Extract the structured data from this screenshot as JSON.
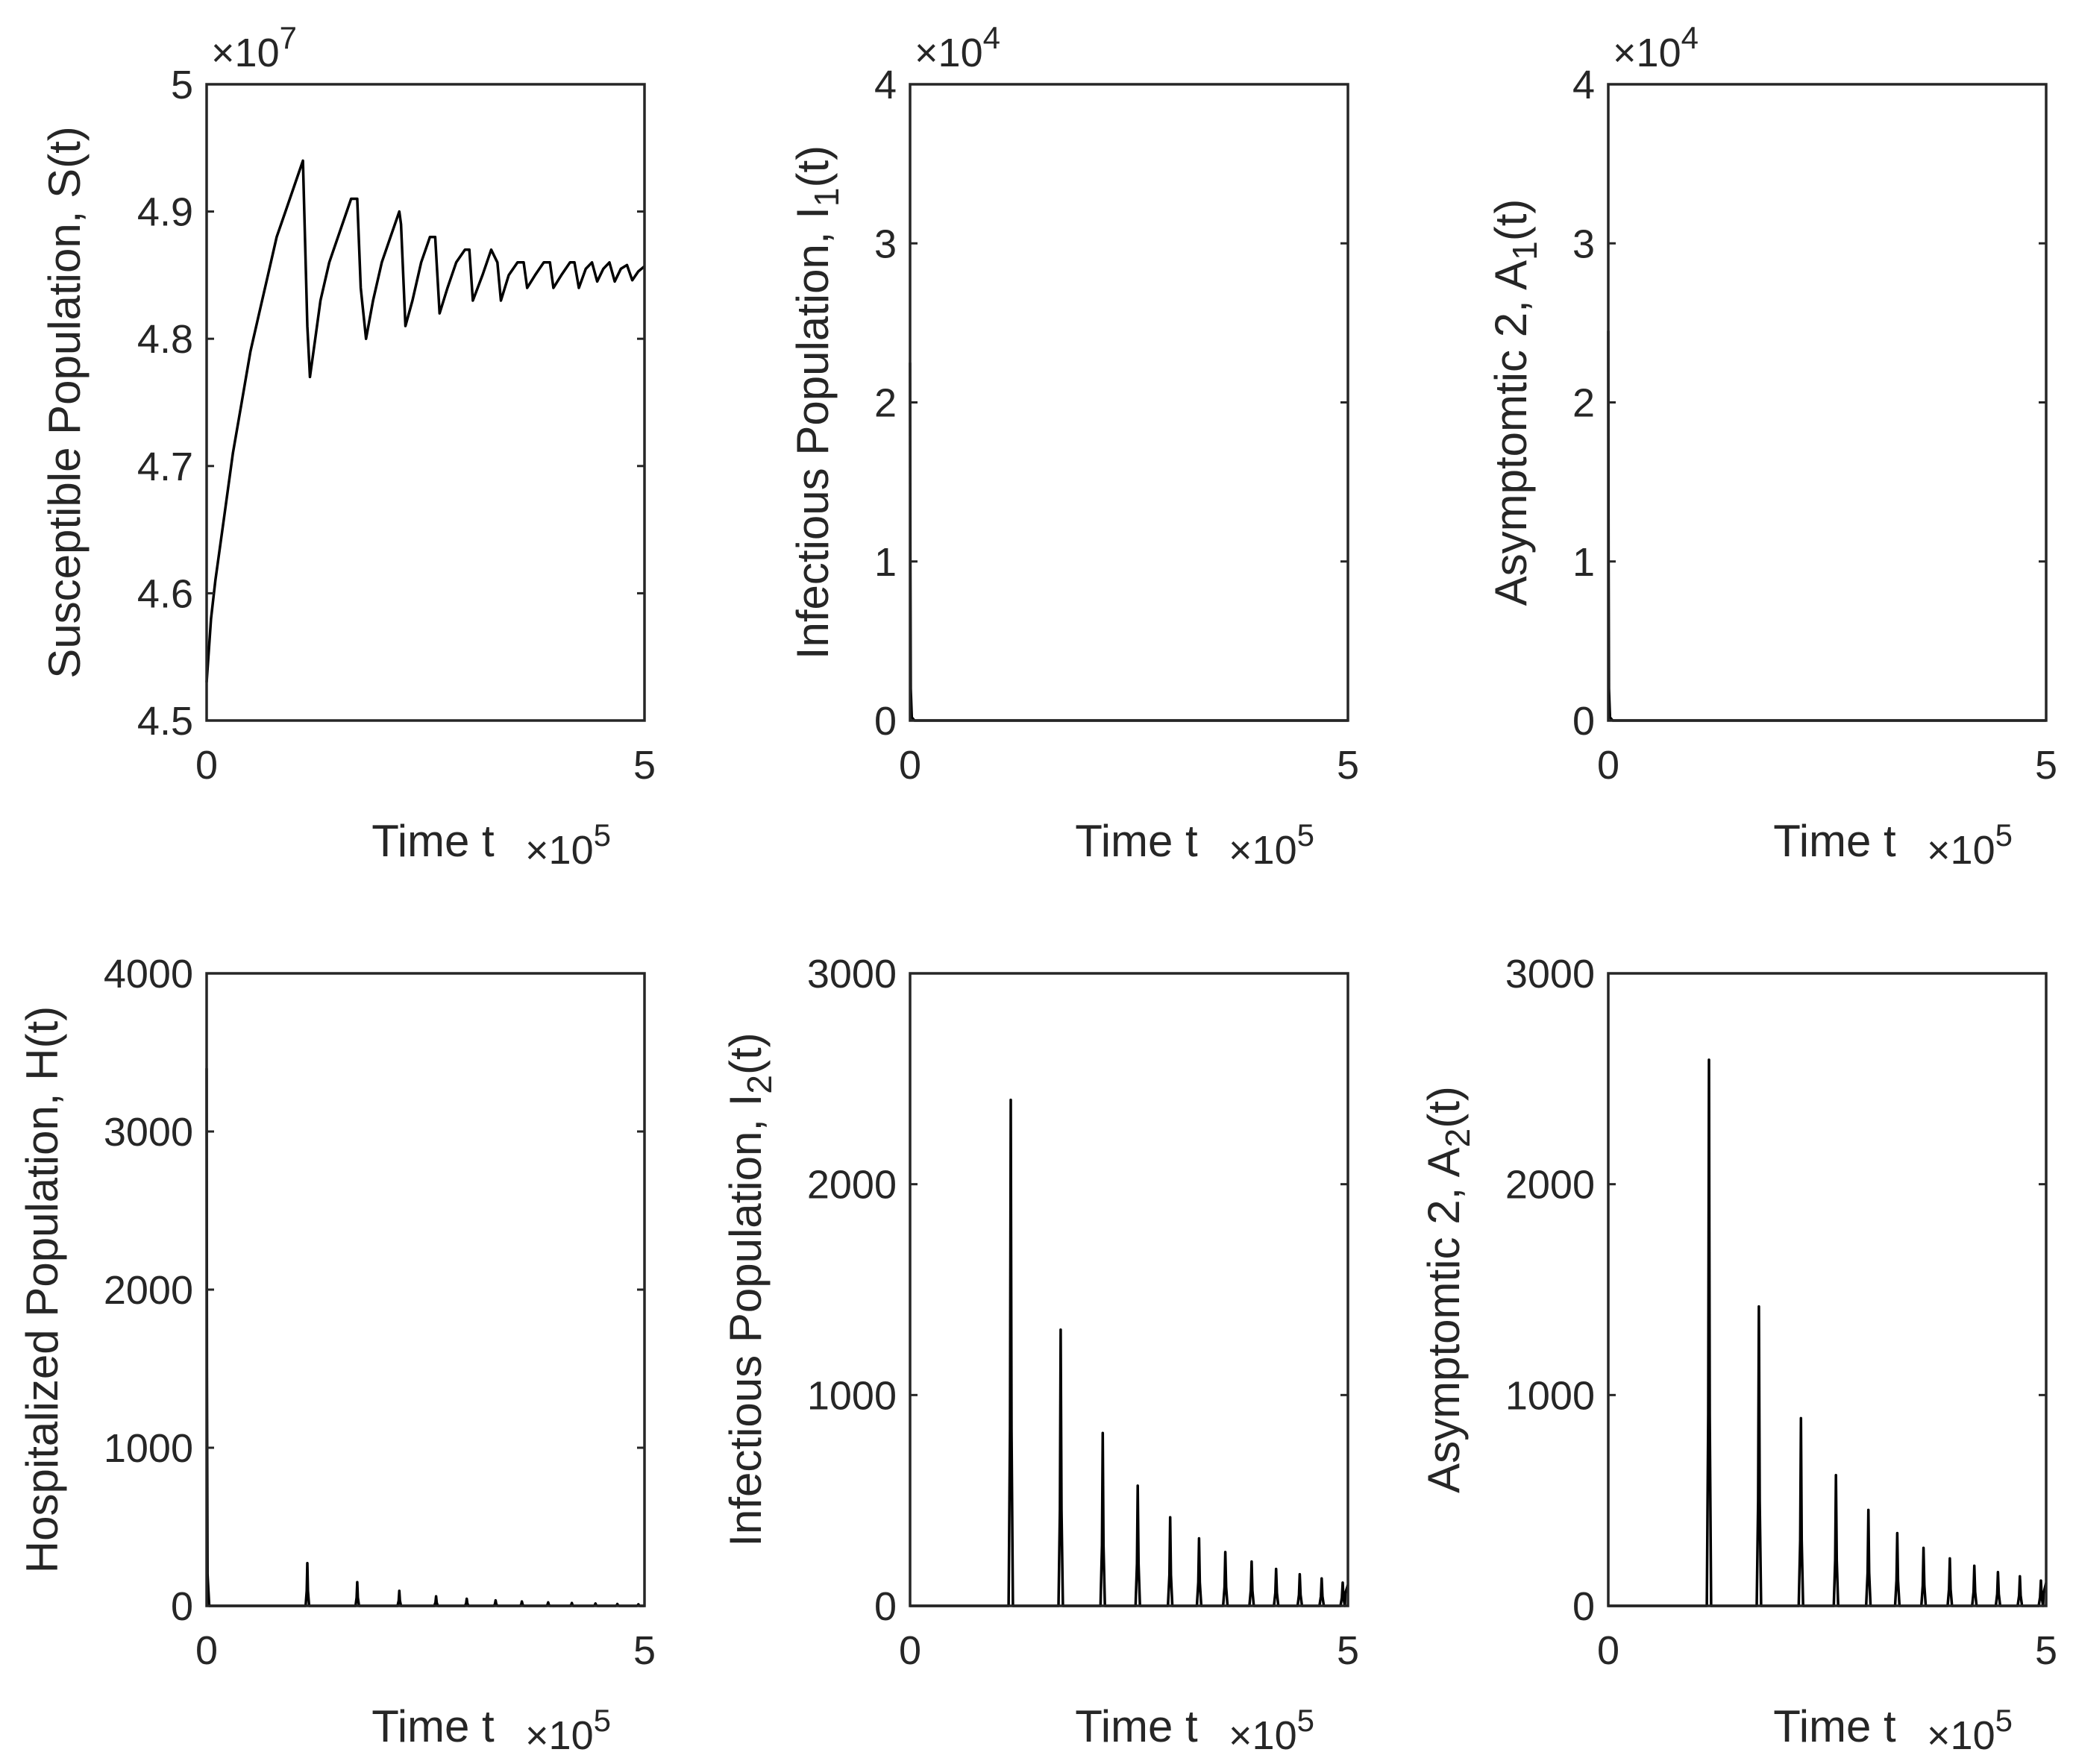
{
  "chart_data": [
    {
      "type": "line",
      "panel": "top-left",
      "title": "",
      "xlabel": "Time t",
      "x_multiplier": "×10",
      "x_multiplier_exp": "5",
      "ylabel": "Susceptible Population, S(t)",
      "ylabel_sub": "",
      "ylabel_end": "",
      "y_multiplier": "×10",
      "y_multiplier_exp": "7",
      "xlim": [
        0,
        5
      ],
      "ylim": [
        4.5,
        5
      ],
      "x_ticks": [
        "0",
        "5"
      ],
      "y_ticks": [
        "4.5",
        "4.6",
        "4.7",
        "4.8",
        "4.9",
        "5"
      ],
      "y_tick_values": [
        4.5,
        4.6,
        4.7,
        4.8,
        4.9,
        5
      ],
      "series": [
        {
          "name": "S",
          "x": [
            0,
            0.05,
            0.1,
            0.2,
            0.3,
            0.4,
            0.5,
            0.6,
            0.7,
            0.8,
            0.9,
            1.0,
            1.1,
            1.15,
            1.18,
            1.24,
            1.3,
            1.4,
            1.5,
            1.65,
            1.72,
            1.76,
            1.82,
            1.9,
            2.0,
            2.1,
            2.2,
            2.22,
            2.27,
            2.35,
            2.45,
            2.55,
            2.61,
            2.66,
            2.75,
            2.85,
            2.95,
            3.0,
            3.04,
            3.15,
            3.25,
            3.32,
            3.36,
            3.45,
            3.55,
            3.62,
            3.66,
            3.75,
            3.85,
            3.92,
            3.96,
            4.05,
            4.15,
            4.2,
            4.25,
            4.33,
            4.4,
            4.46,
            4.53,
            4.6,
            4.66,
            4.73,
            4.8,
            4.86,
            4.93,
            5.0
          ],
          "y": [
            4.53,
            4.58,
            4.61,
            4.66,
            4.71,
            4.75,
            4.79,
            4.82,
            4.85,
            4.88,
            4.9,
            4.92,
            4.94,
            4.81,
            4.77,
            4.8,
            4.83,
            4.86,
            4.88,
            4.91,
            4.91,
            4.84,
            4.8,
            4.83,
            4.86,
            4.88,
            4.9,
            4.89,
            4.81,
            4.83,
            4.86,
            4.88,
            4.88,
            4.82,
            4.84,
            4.86,
            4.87,
            4.87,
            4.83,
            4.85,
            4.87,
            4.86,
            4.83,
            4.85,
            4.86,
            4.86,
            4.84,
            4.85,
            4.86,
            4.86,
            4.84,
            4.85,
            4.86,
            4.86,
            4.84,
            4.855,
            4.86,
            4.845,
            4.855,
            4.86,
            4.845,
            4.855,
            4.858,
            4.846,
            4.853,
            4.857
          ]
        }
      ]
    },
    {
      "type": "line",
      "panel": "top-middle",
      "title": "",
      "xlabel": "Time t",
      "x_multiplier": "×10",
      "x_multiplier_exp": "5",
      "ylabel": "Infectious Population, I",
      "ylabel_sub": "1",
      "ylabel_end": "(t)",
      "y_multiplier": "×10",
      "y_multiplier_exp": "4",
      "xlim": [
        0,
        5
      ],
      "ylim": [
        0,
        4
      ],
      "x_ticks": [
        "0",
        "5"
      ],
      "y_ticks": [
        "0",
        "1",
        "2",
        "3",
        "4"
      ],
      "y_tick_values": [
        0,
        1,
        2,
        3,
        4
      ],
      "series": [
        {
          "name": "I1",
          "x": [
            0,
            0.003,
            0.008,
            0.02,
            0.05,
            0.5,
            1.0,
            2.0,
            3.0,
            4.0,
            5.0
          ],
          "y": [
            2.25,
            1.0,
            0.2,
            0.02,
            0,
            0,
            0,
            0,
            0,
            0,
            0
          ]
        }
      ]
    },
    {
      "type": "line",
      "panel": "top-right",
      "title": "",
      "xlabel": "Time t",
      "x_multiplier": "×10",
      "x_multiplier_exp": "5",
      "ylabel": "Asymptomtic 2, A",
      "ylabel_sub": "1",
      "ylabel_end": "(t)",
      "y_multiplier": "×10",
      "y_multiplier_exp": "4",
      "xlim": [
        0,
        5
      ],
      "ylim": [
        0,
        4
      ],
      "x_ticks": [
        "0",
        "5"
      ],
      "y_ticks": [
        "0",
        "1",
        "2",
        "3",
        "4"
      ],
      "y_tick_values": [
        0,
        1,
        2,
        3,
        4
      ],
      "series": [
        {
          "name": "A1",
          "x": [
            0,
            0.003,
            0.008,
            0.02,
            0.05,
            0.5,
            1.0,
            2.0,
            3.0,
            4.0,
            5.0
          ],
          "y": [
            2.45,
            1.0,
            0.2,
            0.02,
            0,
            0,
            0,
            0,
            0,
            0,
            0
          ]
        }
      ]
    },
    {
      "type": "line",
      "panel": "bottom-left",
      "title": "",
      "xlabel": "Time t",
      "x_multiplier": "×10",
      "x_multiplier_exp": "5",
      "ylabel": "Hospitalized Population, H(t)",
      "ylabel_sub": "",
      "ylabel_end": "",
      "y_multiplier": "",
      "y_multiplier_exp": "",
      "xlim": [
        0,
        5
      ],
      "ylim": [
        0,
        4000
      ],
      "x_ticks": [
        "0",
        "5"
      ],
      "y_ticks": [
        "0",
        "1000",
        "2000",
        "3000",
        "4000"
      ],
      "y_tick_values": [
        0,
        1000,
        2000,
        3000,
        4000
      ],
      "series": [
        {
          "name": "H",
          "x": [
            0,
            0.003,
            0.01,
            0.03
          ],
          "y": [
            3400,
            1500,
            200,
            0
          ],
          "peaks": [
            [
              1.15,
              270
            ],
            [
              1.72,
              150
            ],
            [
              2.2,
              95
            ],
            [
              2.62,
              60
            ],
            [
              2.97,
              45
            ],
            [
              3.3,
              35
            ],
            [
              3.6,
              28
            ],
            [
              3.9,
              22
            ],
            [
              4.17,
              18
            ],
            [
              4.44,
              15
            ],
            [
              4.69,
              12
            ],
            [
              4.93,
              10
            ]
          ],
          "peak_width": 0.02
        }
      ]
    },
    {
      "type": "line",
      "panel": "bottom-middle",
      "title": "",
      "xlabel": "Time t",
      "x_multiplier": "×10",
      "x_multiplier_exp": "5",
      "ylabel": "Infectious Population, I",
      "ylabel_sub": "2",
      "ylabel_end": "(t)",
      "y_multiplier": "",
      "y_multiplier_exp": "",
      "xlim": [
        0,
        5
      ],
      "ylim": [
        0,
        3000
      ],
      "x_ticks": [
        "0",
        "5"
      ],
      "y_ticks": [
        "0",
        "1000",
        "2000",
        "3000"
      ],
      "y_tick_values": [
        0,
        1000,
        2000,
        3000
      ],
      "series": [
        {
          "name": "I2",
          "x": [],
          "y": [],
          "peaks": [
            [
              1.15,
              2400
            ],
            [
              1.72,
              1310
            ],
            [
              2.2,
              820
            ],
            [
              2.6,
              570
            ],
            [
              2.97,
              420
            ],
            [
              3.3,
              320
            ],
            [
              3.6,
              255
            ],
            [
              3.9,
              210
            ],
            [
              4.18,
              175
            ],
            [
              4.45,
              150
            ],
            [
              4.7,
              130
            ],
            [
              4.94,
              110
            ]
          ],
          "peak_width": 0.025,
          "tail": [
            [
              4.97,
              60
            ],
            [
              5.0,
              100
            ]
          ]
        }
      ]
    },
    {
      "type": "line",
      "panel": "bottom-right",
      "title": "",
      "xlabel": "Time t",
      "x_multiplier": "×10",
      "x_multiplier_exp": "5",
      "ylabel": "Asymptomtic 2, A",
      "ylabel_sub": "2",
      "ylabel_end": "(t)",
      "y_multiplier": "",
      "y_multiplier_exp": "",
      "xlim": [
        0,
        5
      ],
      "ylim": [
        0,
        3000
      ],
      "x_ticks": [
        "0",
        "5"
      ],
      "y_ticks": [
        "0",
        "1000",
        "2000",
        "3000"
      ],
      "y_tick_values": [
        0,
        1000,
        2000,
        3000
      ],
      "series": [
        {
          "name": "A2",
          "x": [],
          "y": [],
          "peaks": [
            [
              1.15,
              2590
            ],
            [
              1.72,
              1420
            ],
            [
              2.2,
              890
            ],
            [
              2.6,
              620
            ],
            [
              2.97,
              455
            ],
            [
              3.3,
              345
            ],
            [
              3.6,
              275
            ],
            [
              3.9,
              225
            ],
            [
              4.18,
              190
            ],
            [
              4.45,
              160
            ],
            [
              4.7,
              140
            ],
            [
              4.94,
              120
            ]
          ],
          "peak_width": 0.025,
          "tail": [
            [
              4.97,
              60
            ],
            [
              5.0,
              110
            ]
          ]
        }
      ]
    }
  ]
}
